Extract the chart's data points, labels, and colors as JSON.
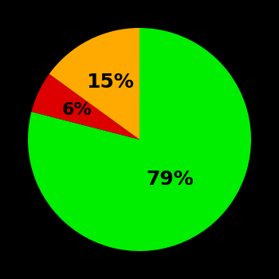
{
  "slices": [
    79,
    6,
    15
  ],
  "colors": [
    "#00ee00",
    "#dd0000",
    "#ffaa00"
  ],
  "labels": [
    "79%",
    "6%",
    "15%"
  ],
  "label_radii": [
    0.45,
    0.62,
    0.58
  ],
  "label_fontsizes": [
    18,
    16,
    18
  ],
  "background_color": "#000000",
  "startangle": 90,
  "counterclock": false,
  "figsize": [
    3.5,
    3.5
  ],
  "dpi": 100
}
